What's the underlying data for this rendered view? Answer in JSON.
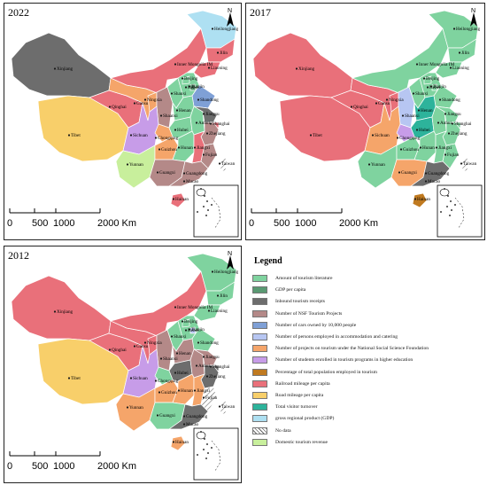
{
  "colors": {
    "lit": "#7fd39f",
    "gdp": "#5a9a73",
    "inbound": "#6d6d6d",
    "nsf": "#b48988",
    "cars": "#7fa0d6",
    "employed": "#b7c6f2",
    "projects": "#f5a56a",
    "students": "#c79ce8",
    "pct": "#c07a20",
    "rail": "#e9707a",
    "road": "#f8cf6a",
    "visitor": "#2db39b",
    "grp": "#aee0f2",
    "nodata": "#ffffff",
    "domestic": "#c8ef9c",
    "border": "#ffffff",
    "dot": "#1a1a1a"
  },
  "panels": [
    {
      "id": "2022",
      "year": "2022",
      "fills": {
        "Heilongjiang": "grp",
        "Jilin": "rail",
        "Liaoning": "rail",
        "Inner Mongolia IM": "rail",
        "Xinjiang": "inbound",
        "Tibet": "road",
        "Qinghai": "rail",
        "Gansu": "projects",
        "Ningxia": "projects",
        "Shaanxi": "nsf",
        "Shanxi": "lit",
        "Hebei": "lit",
        "Beijing": "lit",
        "Tianjin": "gdp",
        "Shandong": "cars",
        "Henan": "lit",
        "Sichuan": "students",
        "Chongqing": "projects",
        "Hubei": "lit",
        "Anhui": "lit",
        "Jiangsu": "inbound",
        "Shanghai": "rail",
        "Zhejiang": "nsf",
        "Yunnan": "domestic",
        "Guizhou": "projects",
        "Hunan": "lit",
        "Jiangxi": "rail",
        "Fujian": "nsf",
        "Guangxi": "nsf",
        "Guangdong": "nsf",
        "Hainan": "rail",
        "Taiwan": "nodata",
        "Macao": "rail"
      }
    },
    {
      "id": "2017",
      "year": "2017",
      "fills": {
        "Heilongjiang": "lit",
        "Jilin": "lit",
        "Liaoning": "lit",
        "Inner Mongolia IM": "lit",
        "Xinjiang": "rail",
        "Tibet": "rail",
        "Qinghai": "rail",
        "Gansu": "rail",
        "Ningxia": "rail",
        "Shaanxi": "employed",
        "Shanxi": "lit",
        "Hebei": "lit",
        "Beijing": "lit",
        "Tianjin": "lit",
        "Shandong": "lit",
        "Henan": "visitor",
        "Sichuan": "projects",
        "Chongqing": "students",
        "Hubei": "visitor",
        "Anhui": "lit",
        "Jiangsu": "lit",
        "Shanghai": "lit",
        "Zhejiang": "lit",
        "Yunnan": "lit",
        "Guizhou": "lit",
        "Hunan": "lit",
        "Jiangxi": "lit",
        "Fujian": "lit",
        "Guangxi": "projects",
        "Guangdong": "inbound",
        "Hainan": "pct",
        "Taiwan": "nodata",
        "Macao": "lit"
      }
    },
    {
      "id": "2012",
      "year": "2012",
      "fills": {
        "Heilongjiang": "lit",
        "Jilin": "lit",
        "Liaoning": "lit",
        "Inner Mongolia IM": "rail",
        "Xinjiang": "rail",
        "Tibet": "road",
        "Qinghai": "rail",
        "Gansu": "rail",
        "Ningxia": "rail",
        "Shaanxi": "nsf",
        "Shanxi": "lit",
        "Hebei": "lit",
        "Beijing": "lit",
        "Tianjin": "employed",
        "Shandong": "lit",
        "Henan": "nsf",
        "Sichuan": "students",
        "Chongqing": "lit",
        "Hubei": "inbound",
        "Anhui": "nsf",
        "Jiangsu": "nsf",
        "Shanghai": "inbound",
        "Zhejiang": "inbound",
        "Yunnan": "projects",
        "Guizhou": "projects",
        "Hunan": "projects",
        "Jiangxi": "projects",
        "Fujian": "nodata",
        "Guangxi": "lit",
        "Guangdong": "inbound",
        "Hainan": "projects",
        "Taiwan": "nodata",
        "Macao": "lit"
      }
    }
  ],
  "province_labels": [
    "Heilongjiang",
    "Jilin",
    "Liaoning",
    "Inner Mongolia IM",
    "Xinjiang",
    "Tibet",
    "Qinghai",
    "Gansu",
    "Ningxia",
    "Shaanxi",
    "Shanxi",
    "Hebei",
    "Beijing",
    "Tianjin",
    "Shandong",
    "Henan",
    "Sichuan",
    "Chongqing",
    "Hubei",
    "Anhui",
    "Jiangsu",
    "Shanghai",
    "Zhejiang",
    "Yunnan",
    "Guizhou",
    "Hunan",
    "Jiangxi",
    "Fujian",
    "Guangxi",
    "Guangdong",
    "Hainan",
    "Taiwan",
    "Macao"
  ],
  "north_arrow": "N",
  "scale_bar": [
    "0",
    "500",
    "1000",
    "2000 Km"
  ],
  "legend": {
    "title": "Legend",
    "items": [
      {
        "key": "lit",
        "label": "Amount of tourism literature"
      },
      {
        "key": "gdp",
        "label": "GDP per capita"
      },
      {
        "key": "inbound",
        "label": "Inbound tourism receipts"
      },
      {
        "key": "nsf",
        "label": "Number of NSF Tourism Projects"
      },
      {
        "key": "cars",
        "label": "Number of cars owned by 10,000 people"
      },
      {
        "key": "employed",
        "label": "Number of persons employed in accommodation and catering"
      },
      {
        "key": "projects",
        "label": "Number of projects on tourism under the National Social Science Foundation"
      },
      {
        "key": "students",
        "label": "Number of students enrolled in tourism programs in higher education"
      },
      {
        "key": "pct",
        "label": "Percentage of total population employed in tourism"
      },
      {
        "key": "rail",
        "label": "Railroad mileage per capita"
      },
      {
        "key": "road",
        "label": "Road mileage per capita"
      },
      {
        "key": "visitor",
        "label": "Total visitor turnover"
      },
      {
        "key": "grp",
        "label": "gross regional product (GDP)"
      },
      {
        "key": "nodata",
        "label": "No data"
      },
      {
        "key": "domestic",
        "label": "Domestic tourism revenue"
      }
    ]
  }
}
